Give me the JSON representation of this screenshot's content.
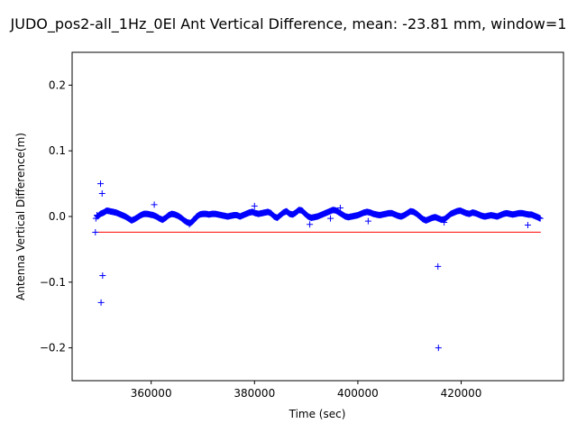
{
  "chart_data": {
    "type": "scatter",
    "title": "JUDO_pos2-all_1Hz_0El Ant Vertical Difference, mean: -23.81 mm, window=1",
    "xlabel": "Time (sec)",
    "ylabel": "Antenna Vertical Difference(m)",
    "xlim": [
      344700,
      439800
    ],
    "ylim": [
      -0.25,
      0.25
    ],
    "xticks": [
      360000,
      380000,
      400000,
      420000
    ],
    "xtick_labels": [
      "360000",
      "380000",
      "400000",
      "420000"
    ],
    "yticks": [
      -0.2,
      -0.1,
      0.0,
      0.1,
      0.2
    ],
    "ytick_labels": [
      "−0.2",
      "−0.1",
      "0.0",
      "0.1",
      "0.2"
    ],
    "grid": false,
    "colors": {
      "points": "#0000ff",
      "mean_line": "#ff0000"
    },
    "mean_line": {
      "y": -0.02381,
      "x_range": [
        349000,
        435400
      ]
    },
    "series": [
      {
        "marker": "+",
        "dense_track": [
          [
            349600,
            0.0
          ],
          [
            350200,
            0.004
          ],
          [
            350800,
            0.006
          ],
          [
            351400,
            0.009
          ],
          [
            352000,
            0.008
          ],
          [
            352600,
            0.007
          ],
          [
            353200,
            0.006
          ],
          [
            353800,
            0.004
          ],
          [
            354400,
            0.002
          ],
          [
            355000,
            0.0
          ],
          [
            355600,
            -0.003
          ],
          [
            356200,
            -0.006
          ],
          [
            356800,
            -0.004
          ],
          [
            357400,
            -0.001
          ],
          [
            358000,
            0.002
          ],
          [
            358600,
            0.004
          ],
          [
            359200,
            0.004
          ],
          [
            359800,
            0.003
          ],
          [
            360400,
            0.002
          ],
          [
            361000,
            0.0
          ],
          [
            361600,
            -0.003
          ],
          [
            362200,
            -0.005
          ],
          [
            362800,
            -0.002
          ],
          [
            363400,
            0.002
          ],
          [
            364000,
            0.004
          ],
          [
            364600,
            0.003
          ],
          [
            365200,
            0.001
          ],
          [
            365800,
            -0.002
          ],
          [
            366400,
            -0.006
          ],
          [
            367000,
            -0.009
          ],
          [
            367600,
            -0.01
          ],
          [
            368200,
            -0.006
          ],
          [
            368800,
            0.0
          ],
          [
            369400,
            0.003
          ],
          [
            370000,
            0.004
          ],
          [
            370600,
            0.004
          ],
          [
            371200,
            0.003
          ],
          [
            371800,
            0.004
          ],
          [
            372400,
            0.004
          ],
          [
            373000,
            0.003
          ],
          [
            373600,
            0.002
          ],
          [
            374200,
            0.001
          ],
          [
            374800,
            0.0
          ],
          [
            375400,
            0.001
          ],
          [
            376000,
            0.002
          ],
          [
            376600,
            0.002
          ],
          [
            377200,
            0.0
          ],
          [
            377800,
            0.002
          ],
          [
            378400,
            0.004
          ],
          [
            379000,
            0.006
          ],
          [
            379600,
            0.007
          ],
          [
            380200,
            0.005
          ],
          [
            380800,
            0.004
          ],
          [
            381400,
            0.005
          ],
          [
            382000,
            0.006
          ],
          [
            382600,
            0.007
          ],
          [
            383200,
            0.005
          ],
          [
            383800,
            0.0
          ],
          [
            384400,
            -0.002
          ],
          [
            385000,
            0.002
          ],
          [
            385600,
            0.006
          ],
          [
            386200,
            0.008
          ],
          [
            386800,
            0.004
          ],
          [
            387400,
            0.003
          ],
          [
            388000,
            0.006
          ],
          [
            388600,
            0.01
          ],
          [
            389200,
            0.009
          ],
          [
            389800,
            0.004
          ],
          [
            390400,
            0.0
          ],
          [
            391000,
            -0.002
          ],
          [
            391600,
            -0.001
          ],
          [
            392200,
            0.0
          ],
          [
            392800,
            0.002
          ],
          [
            393400,
            0.004
          ],
          [
            394000,
            0.006
          ],
          [
            394600,
            0.008
          ],
          [
            395200,
            0.01
          ],
          [
            395800,
            0.009
          ],
          [
            396400,
            0.006
          ],
          [
            397000,
            0.003
          ],
          [
            397600,
            0.0
          ],
          [
            398200,
            -0.001
          ],
          [
            398800,
            0.0
          ],
          [
            399400,
            0.001
          ],
          [
            400000,
            0.002
          ],
          [
            400600,
            0.004
          ],
          [
            401200,
            0.006
          ],
          [
            401800,
            0.007
          ],
          [
            402400,
            0.006
          ],
          [
            403000,
            0.004
          ],
          [
            403600,
            0.003
          ],
          [
            404200,
            0.002
          ],
          [
            404800,
            0.003
          ],
          [
            405400,
            0.004
          ],
          [
            406000,
            0.005
          ],
          [
            406600,
            0.005
          ],
          [
            407200,
            0.003
          ],
          [
            407800,
            0.001
          ],
          [
            408400,
            0.0
          ],
          [
            409000,
            0.002
          ],
          [
            409600,
            0.005
          ],
          [
            410200,
            0.008
          ],
          [
            410800,
            0.007
          ],
          [
            411400,
            0.004
          ],
          [
            412000,
            0.0
          ],
          [
            412600,
            -0.004
          ],
          [
            413200,
            -0.006
          ],
          [
            413800,
            -0.004
          ],
          [
            414400,
            -0.002
          ],
          [
            415000,
            -0.001
          ],
          [
            415600,
            -0.003
          ],
          [
            416200,
            -0.005
          ],
          [
            416800,
            -0.004
          ],
          [
            417400,
            0.0
          ],
          [
            418000,
            0.004
          ],
          [
            418600,
            0.006
          ],
          [
            419200,
            0.008
          ],
          [
            419800,
            0.009
          ],
          [
            420400,
            0.007
          ],
          [
            421000,
            0.005
          ],
          [
            421600,
            0.004
          ],
          [
            422200,
            0.006
          ],
          [
            422800,
            0.005
          ],
          [
            423400,
            0.003
          ],
          [
            424000,
            0.001
          ],
          [
            424600,
            0.0
          ],
          [
            425200,
            0.001
          ],
          [
            425800,
            0.002
          ],
          [
            426400,
            0.001
          ],
          [
            427000,
            0.0
          ],
          [
            427600,
            0.002
          ],
          [
            428200,
            0.004
          ],
          [
            428800,
            0.005
          ],
          [
            429400,
            0.004
          ],
          [
            430000,
            0.003
          ],
          [
            430600,
            0.004
          ],
          [
            431200,
            0.005
          ],
          [
            431800,
            0.005
          ],
          [
            432400,
            0.004
          ],
          [
            433000,
            0.003
          ],
          [
            433600,
            0.003
          ],
          [
            434200,
            0.001
          ],
          [
            434800,
            -0.001
          ],
          [
            435300,
            -0.003
          ]
        ],
        "outliers": [
          [
            349200,
            -0.024
          ],
          [
            349300,
            -0.003
          ],
          [
            349500,
            0.002
          ],
          [
            350200,
            0.05
          ],
          [
            350300,
            -0.131
          ],
          [
            350500,
            0.035
          ],
          [
            350600,
            -0.09
          ],
          [
            360600,
            0.018
          ],
          [
            367400,
            -0.012
          ],
          [
            380000,
            0.016
          ],
          [
            390700,
            -0.012
          ],
          [
            394700,
            -0.003
          ],
          [
            396600,
            0.013
          ],
          [
            402000,
            -0.007
          ],
          [
            415500,
            -0.076
          ],
          [
            415600,
            -0.2
          ],
          [
            416700,
            -0.009
          ],
          [
            432900,
            -0.013
          ]
        ]
      }
    ]
  }
}
